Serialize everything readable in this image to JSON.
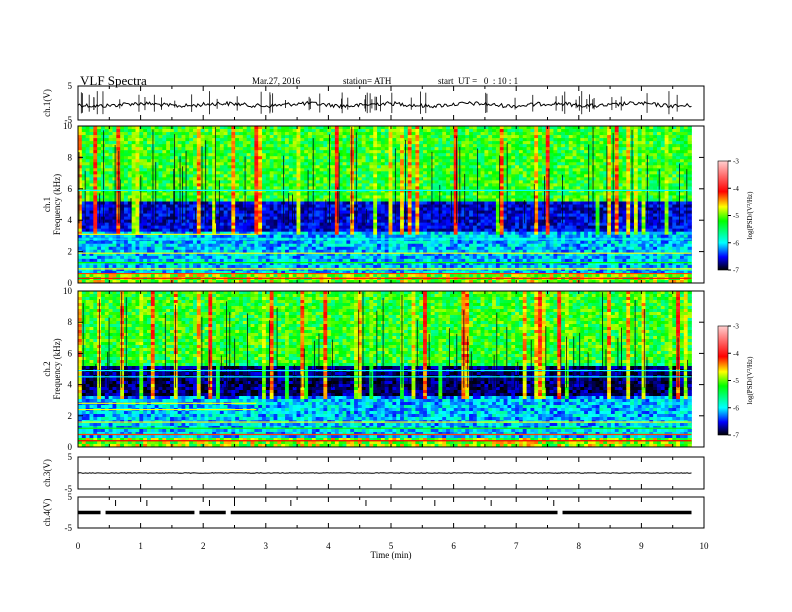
{
  "header": {
    "title": "VLF  Spectra",
    "date": "Mar.27, 2016",
    "station": "station= ATH",
    "start": "start  UT =   0  : 10 : 1"
  },
  "colors": {
    "cb_top": "#ffd0d0",
    "cb_mid_hi": "#ff0000",
    "cb_mid": "#ffff00",
    "cb_green": "#00ff00",
    "cb_cyan": "#00ffff",
    "cb_blue": "#0000ff",
    "cb_bottom": "#000000"
  },
  "chart_data": [
    {
      "type": "line",
      "panel": "ch1-waveform",
      "ylabel": "ch.1(V)",
      "ylim": [
        -5,
        5
      ],
      "yticks": [
        "5",
        "-5"
      ],
      "xlim": [
        0,
        10
      ],
      "trace_level_v": -0.5
    },
    {
      "type": "heatmap",
      "panel": "ch1-spectrogram",
      "ylabel": "Frequency  (kHz)",
      "channel_label": "ch.1",
      "ylim": [
        0,
        10
      ],
      "yticks": [
        "0",
        "2",
        "4",
        "6",
        "8",
        "10"
      ],
      "xlim": [
        0,
        9.8
      ],
      "colorbar": {
        "label": "log(PSD/(V²/Hz)",
        "ticks": [
          "-3",
          "-4",
          "-5",
          "-6",
          "-7"
        ],
        "range": [
          -7,
          -3
        ]
      }
    },
    {
      "type": "heatmap",
      "panel": "ch2-spectrogram",
      "ylabel": "Frequency  (kHz)",
      "channel_label": "ch.2",
      "ylim": [
        0,
        10
      ],
      "yticks": [
        "0",
        "2",
        "4",
        "6",
        "8",
        "10"
      ],
      "xlim": [
        0,
        9.8
      ],
      "colorbar": {
        "label": "log(PSD/(V²/Hz)",
        "ticks": [
          "-3",
          "-4",
          "-5",
          "-6",
          "-7"
        ],
        "range": [
          -7,
          -3
        ]
      }
    },
    {
      "type": "line",
      "panel": "ch3-waveform",
      "ylabel": "ch.3(V)",
      "ylim": [
        -5,
        5
      ],
      "yticks": [
        "5",
        "-5"
      ],
      "xlim": [
        0,
        10
      ],
      "trace_level_v": 0
    },
    {
      "type": "line",
      "panel": "ch4-waveform",
      "ylabel": "ch.4(V)",
      "ylim": [
        -5,
        5
      ],
      "yticks": [
        "5",
        "-5"
      ],
      "xlim": [
        0,
        10
      ],
      "trace_level_v": 0,
      "xlabel": "Time  (min)",
      "xticks": [
        "0",
        "1",
        "2",
        "3",
        "4",
        "5",
        "6",
        "7",
        "8",
        "9",
        "10"
      ]
    }
  ]
}
